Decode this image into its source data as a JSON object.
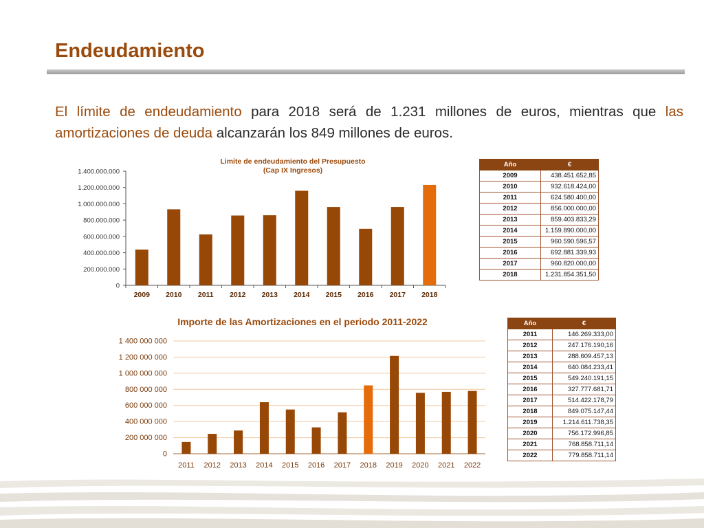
{
  "page": {
    "title": "Endeudamiento",
    "intro": {
      "p1": "El límite de endeudamiento",
      "p2": " para 2018 será de 1.231 millones de euros, mientras que ",
      "p3": "las amortizaciones de deuda",
      "p4": " alcanzarán los 849 millones de euros."
    }
  },
  "colors": {
    "bar": "#974706",
    "highlight": "#e46c0a",
    "title": "#9a4a0c",
    "header": "#8b4513"
  },
  "chart_data": [
    {
      "type": "bar",
      "title": "Limite de endeudamiento del Presupuesto",
      "subtitle": "(Cap IX Ingresos)",
      "categories": [
        "2009",
        "2010",
        "2011",
        "2012",
        "2013",
        "2014",
        "2015",
        "2016",
        "2017",
        "2018"
      ],
      "values": [
        438451652.85,
        932618424.0,
        624580400.0,
        856000000.0,
        859403833.29,
        1159890000.0,
        960590596.57,
        692881339.93,
        960820000.0,
        1231854351.5
      ],
      "ylim": [
        0,
        1400000000
      ],
      "yticks": [
        0,
        200000000,
        400000000,
        600000000,
        800000000,
        1000000000,
        1200000000,
        1400000000
      ],
      "ytick_labels": [
        "0",
        "200.000.000",
        "400.000.000",
        "600.000.000",
        "800.000.000",
        "1.000.000.000",
        "1.200.000.000",
        "1.400.000.000"
      ],
      "highlight_category": "2018",
      "grid": false
    },
    {
      "type": "bar",
      "title": "Importe de las Amortizaciones en el periodo 2011-2022",
      "categories": [
        "2011",
        "2012",
        "2013",
        "2014",
        "2015",
        "2016",
        "2017",
        "2018",
        "2019",
        "2020",
        "2021",
        "2022"
      ],
      "values": [
        146269333.0,
        247176190.16,
        288609457.13,
        640084233.41,
        549240191.15,
        327777681.71,
        514422178.79,
        849075147.44,
        1214611738.35,
        756172996.85,
        768858711.14,
        779858711.14
      ],
      "ylim": [
        0,
        1400000000
      ],
      "yticks": [
        0,
        200000000,
        400000000,
        600000000,
        800000000,
        1000000000,
        1200000000,
        1400000000
      ],
      "ytick_labels": [
        "0",
        "200 000 000",
        "400 000 000",
        "600 000 000",
        "800 000 000",
        "1 000 000 000",
        "1 200 000 000",
        "1 400 000 000"
      ],
      "highlight_category": "2018",
      "grid": true
    }
  ],
  "table1": {
    "header_year": "Año",
    "header_value": "€",
    "rows": [
      {
        "year": "2009",
        "value": "438.451.652,85"
      },
      {
        "year": "2010",
        "value": "932.618.424,00"
      },
      {
        "year": "2011",
        "value": "624.580.400,00"
      },
      {
        "year": "2012",
        "value": "856.000.000,00"
      },
      {
        "year": "2013",
        "value": "859.403.833,29"
      },
      {
        "year": "2014",
        "value": "1.159.890.000,00"
      },
      {
        "year": "2015",
        "value": "960.590.596,57"
      },
      {
        "year": "2016",
        "value": "692.881.339,93"
      },
      {
        "year": "2017",
        "value": "960.820.000,00"
      },
      {
        "year": "2018",
        "value": "1.231.854.351,50"
      }
    ]
  },
  "table2": {
    "header_year": "Año",
    "header_value": "€",
    "rows": [
      {
        "year": "2011",
        "value": "146.269.333,00"
      },
      {
        "year": "2012",
        "value": "247.176.190,16"
      },
      {
        "year": "2013",
        "value": "288.609.457,13"
      },
      {
        "year": "2014",
        "value": "640.084.233,41"
      },
      {
        "year": "2015",
        "value": "549.240.191,15"
      },
      {
        "year": "2016",
        "value": "327.777.681,71"
      },
      {
        "year": "2017",
        "value": "514.422.178,79"
      },
      {
        "year": "2018",
        "value": "849.075.147,44"
      },
      {
        "year": "2019",
        "value": "1.214.611.738,35"
      },
      {
        "year": "2020",
        "value": "756.172.996,85"
      },
      {
        "year": "2021",
        "value": "768.858.711,14"
      },
      {
        "year": "2022",
        "value": "779.858.711,14"
      }
    ]
  }
}
